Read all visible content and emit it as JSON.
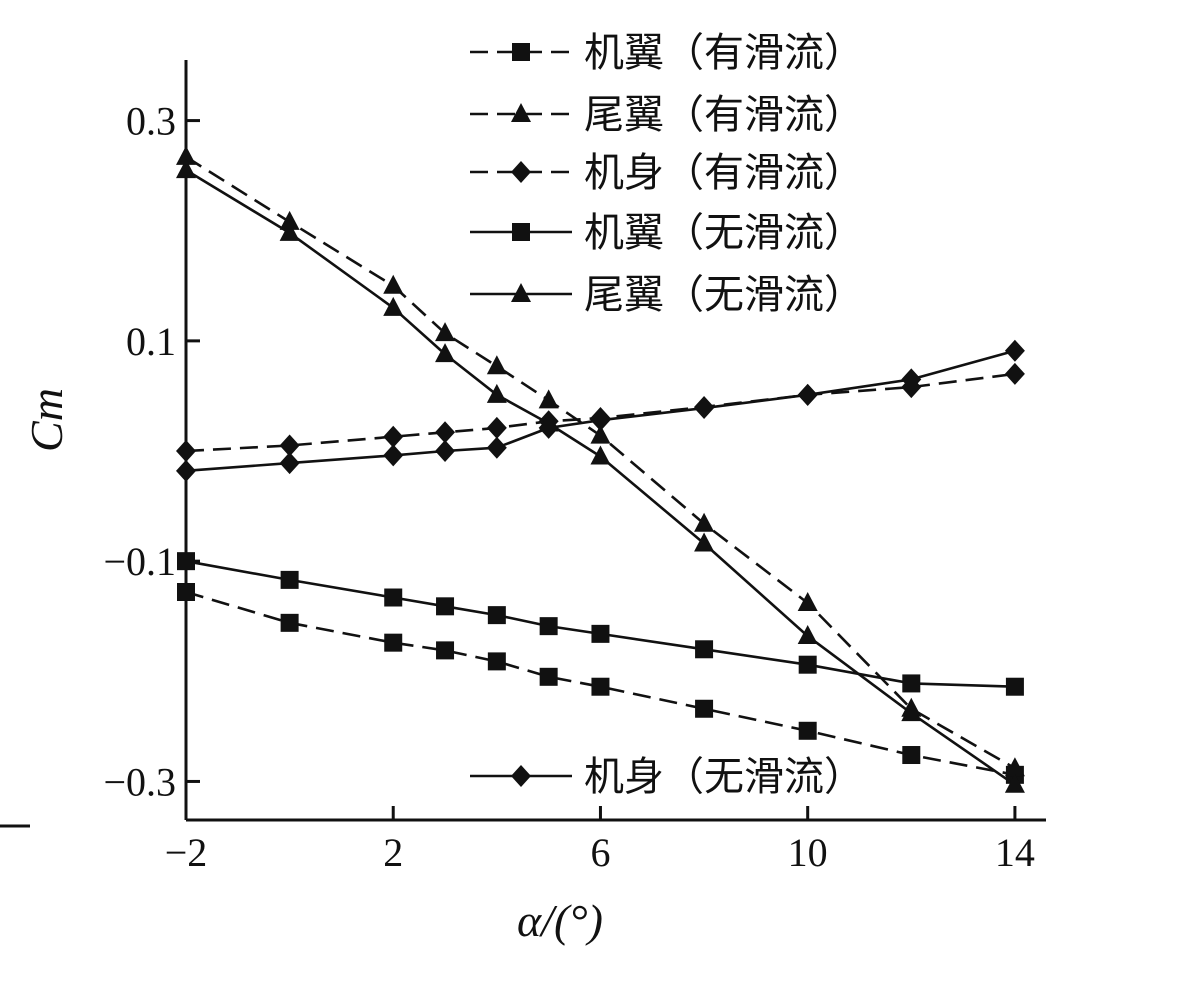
{
  "chart_data": {
    "type": "line",
    "xlabel": "α/(°)",
    "ylabel": "Cm",
    "xlim": [
      -2,
      14.6
    ],
    "ylim": [
      -0.335,
      0.355
    ],
    "xticks": [
      -2,
      2,
      6,
      10,
      14
    ],
    "xtick_labels": [
      "−2",
      "2",
      "6",
      "10",
      "14"
    ],
    "yticks": [
      -0.3,
      -0.1,
      0.1,
      0.3
    ],
    "ytick_labels": [
      "−0.3",
      "−0.1",
      "0.1",
      "0.3"
    ],
    "grid": false,
    "legend": {
      "placement": "top-right"
    },
    "x": [
      -2,
      0,
      2,
      3,
      4,
      5,
      6,
      8,
      10,
      12,
      14
    ],
    "series": [
      {
        "name": "机翼（有滑流）",
        "line": "dashed",
        "marker": "square",
        "values": [
          -0.128,
          -0.156,
          -0.174,
          -0.181,
          -0.191,
          -0.205,
          -0.214,
          -0.234,
          -0.254,
          -0.276,
          -0.294
        ]
      },
      {
        "name": "尾翼（有滑流）",
        "line": "dashed",
        "marker": "triangle",
        "values": [
          0.267,
          0.208,
          0.15,
          0.107,
          0.077,
          0.046,
          0.014,
          -0.066,
          -0.138,
          -0.234,
          -0.288
        ]
      },
      {
        "name": "机身（有滑流）",
        "line": "dashed",
        "marker": "diamond",
        "values": [
          0.0,
          0.005,
          0.013,
          0.017,
          0.021,
          0.027,
          0.03,
          0.04,
          0.051,
          0.058,
          0.07
        ]
      },
      {
        "name": "机翼（无滑流）",
        "line": "solid",
        "marker": "square",
        "values": [
          -0.1,
          -0.117,
          -0.133,
          -0.141,
          -0.149,
          -0.159,
          -0.166,
          -0.18,
          -0.194,
          -0.211,
          -0.214
        ]
      },
      {
        "name": "尾翼（无滑流）",
        "line": "solid",
        "marker": "triangle",
        "values": [
          0.255,
          0.198,
          0.13,
          0.088,
          0.051,
          0.025,
          -0.005,
          -0.084,
          -0.168,
          -0.238,
          -0.303
        ]
      },
      {
        "name": "机身（无滑流）",
        "line": "solid",
        "marker": "diamond",
        "values": [
          -0.018,
          -0.011,
          -0.004,
          0.0,
          0.003,
          0.021,
          0.028,
          0.039,
          0.051,
          0.065,
          0.091
        ]
      }
    ]
  }
}
